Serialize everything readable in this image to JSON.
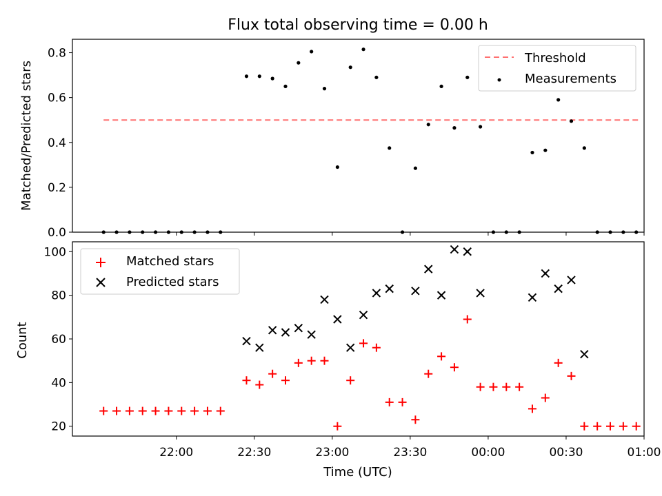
{
  "chart_data": [
    {
      "type": "scatter",
      "title": "Flux total observing time = 0.00 h",
      "ylabel": "Matched/Predicted stars",
      "xlabel": "",
      "ylim": [
        0,
        0.86
      ],
      "yticks": [
        0.0,
        0.2,
        0.4,
        0.6,
        0.8
      ],
      "ytick_labels": [
        "0.0",
        "0.2",
        "0.4",
        "0.6",
        "0.8"
      ],
      "xlim": [
        "21:20",
        "01:00"
      ],
      "legend_position": "top-right",
      "threshold": {
        "name": "Threshold",
        "value": 0.5,
        "x_start": "21:32",
        "x_end": "00:58",
        "color": "#ff7070"
      },
      "series": [
        {
          "name": "Measurements",
          "marker": "dot",
          "color": "#000000",
          "x": [
            "21:32",
            "21:37",
            "21:42",
            "21:47",
            "21:52",
            "21:57",
            "22:02",
            "22:07",
            "22:12",
            "22:17",
            "22:27",
            "22:32",
            "22:37",
            "22:42",
            "22:47",
            "22:52",
            "22:57",
            "23:02",
            "23:07",
            "23:12",
            "23:17",
            "23:22",
            "23:27",
            "23:32",
            "23:37",
            "23:42",
            "23:47",
            "23:52",
            "23:57",
            "00:02",
            "00:07",
            "00:12",
            "00:17",
            "00:22",
            "00:27",
            "00:32",
            "00:37",
            "00:42",
            "00:47",
            "00:52",
            "00:57"
          ],
          "y": [
            0,
            0,
            0,
            0,
            0,
            0,
            0,
            0,
            0,
            0,
            0.695,
            0.695,
            0.685,
            0.65,
            0.755,
            0.805,
            0.64,
            0.29,
            0.735,
            0.815,
            0.69,
            0.375,
            0,
            0.285,
            0.48,
            0.65,
            0.465,
            0.69,
            0.47,
            0,
            0,
            0,
            0.355,
            0.365,
            0.59,
            0.495,
            0.375,
            0,
            0,
            0,
            0
          ]
        }
      ]
    },
    {
      "type": "scatter",
      "title": "",
      "ylabel": "Count",
      "xlabel": "Time (UTC)",
      "ylim": [
        15.5,
        104.5
      ],
      "yticks": [
        20,
        40,
        60,
        80,
        100
      ],
      "ytick_labels": [
        "20",
        "40",
        "60",
        "80",
        "100"
      ],
      "xlim": [
        "21:20",
        "01:00"
      ],
      "xticks": [
        "22:00",
        "22:30",
        "23:00",
        "23:30",
        "00:00",
        "00:30",
        "01:00"
      ],
      "legend_position": "top-left",
      "series": [
        {
          "name": "Matched stars",
          "marker": "plus",
          "color": "#ff0000",
          "x": [
            "21:32",
            "21:37",
            "21:42",
            "21:47",
            "21:52",
            "21:57",
            "22:02",
            "22:07",
            "22:12",
            "22:17",
            "22:27",
            "22:32",
            "22:37",
            "22:42",
            "22:47",
            "22:52",
            "22:57",
            "23:02",
            "23:07",
            "23:12",
            "23:17",
            "23:22",
            "23:27",
            "23:32",
            "23:37",
            "23:42",
            "23:47",
            "23:52",
            "23:57",
            "00:02",
            "00:07",
            "00:12",
            "00:17",
            "00:22",
            "00:27",
            "00:32",
            "00:37",
            "00:42",
            "00:47",
            "00:52",
            "00:57"
          ],
          "y": [
            27,
            27,
            27,
            27,
            27,
            27,
            27,
            27,
            27,
            27,
            41,
            39,
            44,
            41,
            49,
            50,
            50,
            20,
            41,
            58,
            56,
            31,
            31,
            23,
            44,
            52,
            47,
            69,
            38,
            38,
            38,
            38,
            28,
            33,
            49,
            43,
            20,
            20,
            20,
            20,
            20
          ]
        },
        {
          "name": "Predicted stars",
          "marker": "x",
          "color": "#000000",
          "x": [
            "22:27",
            "22:32",
            "22:37",
            "22:42",
            "22:47",
            "22:52",
            "22:57",
            "23:02",
            "23:07",
            "23:12",
            "23:17",
            "23:22",
            "23:32",
            "23:37",
            "23:42",
            "23:47",
            "23:52",
            "23:57",
            "00:17",
            "00:22",
            "00:27",
            "00:32",
            "00:37"
          ],
          "y": [
            59,
            56,
            64,
            63,
            65,
            62,
            78,
            69,
            56,
            71,
            81,
            83,
            82,
            92,
            80,
            101,
            100,
            81,
            79,
            90,
            83,
            87,
            53
          ]
        }
      ]
    }
  ]
}
